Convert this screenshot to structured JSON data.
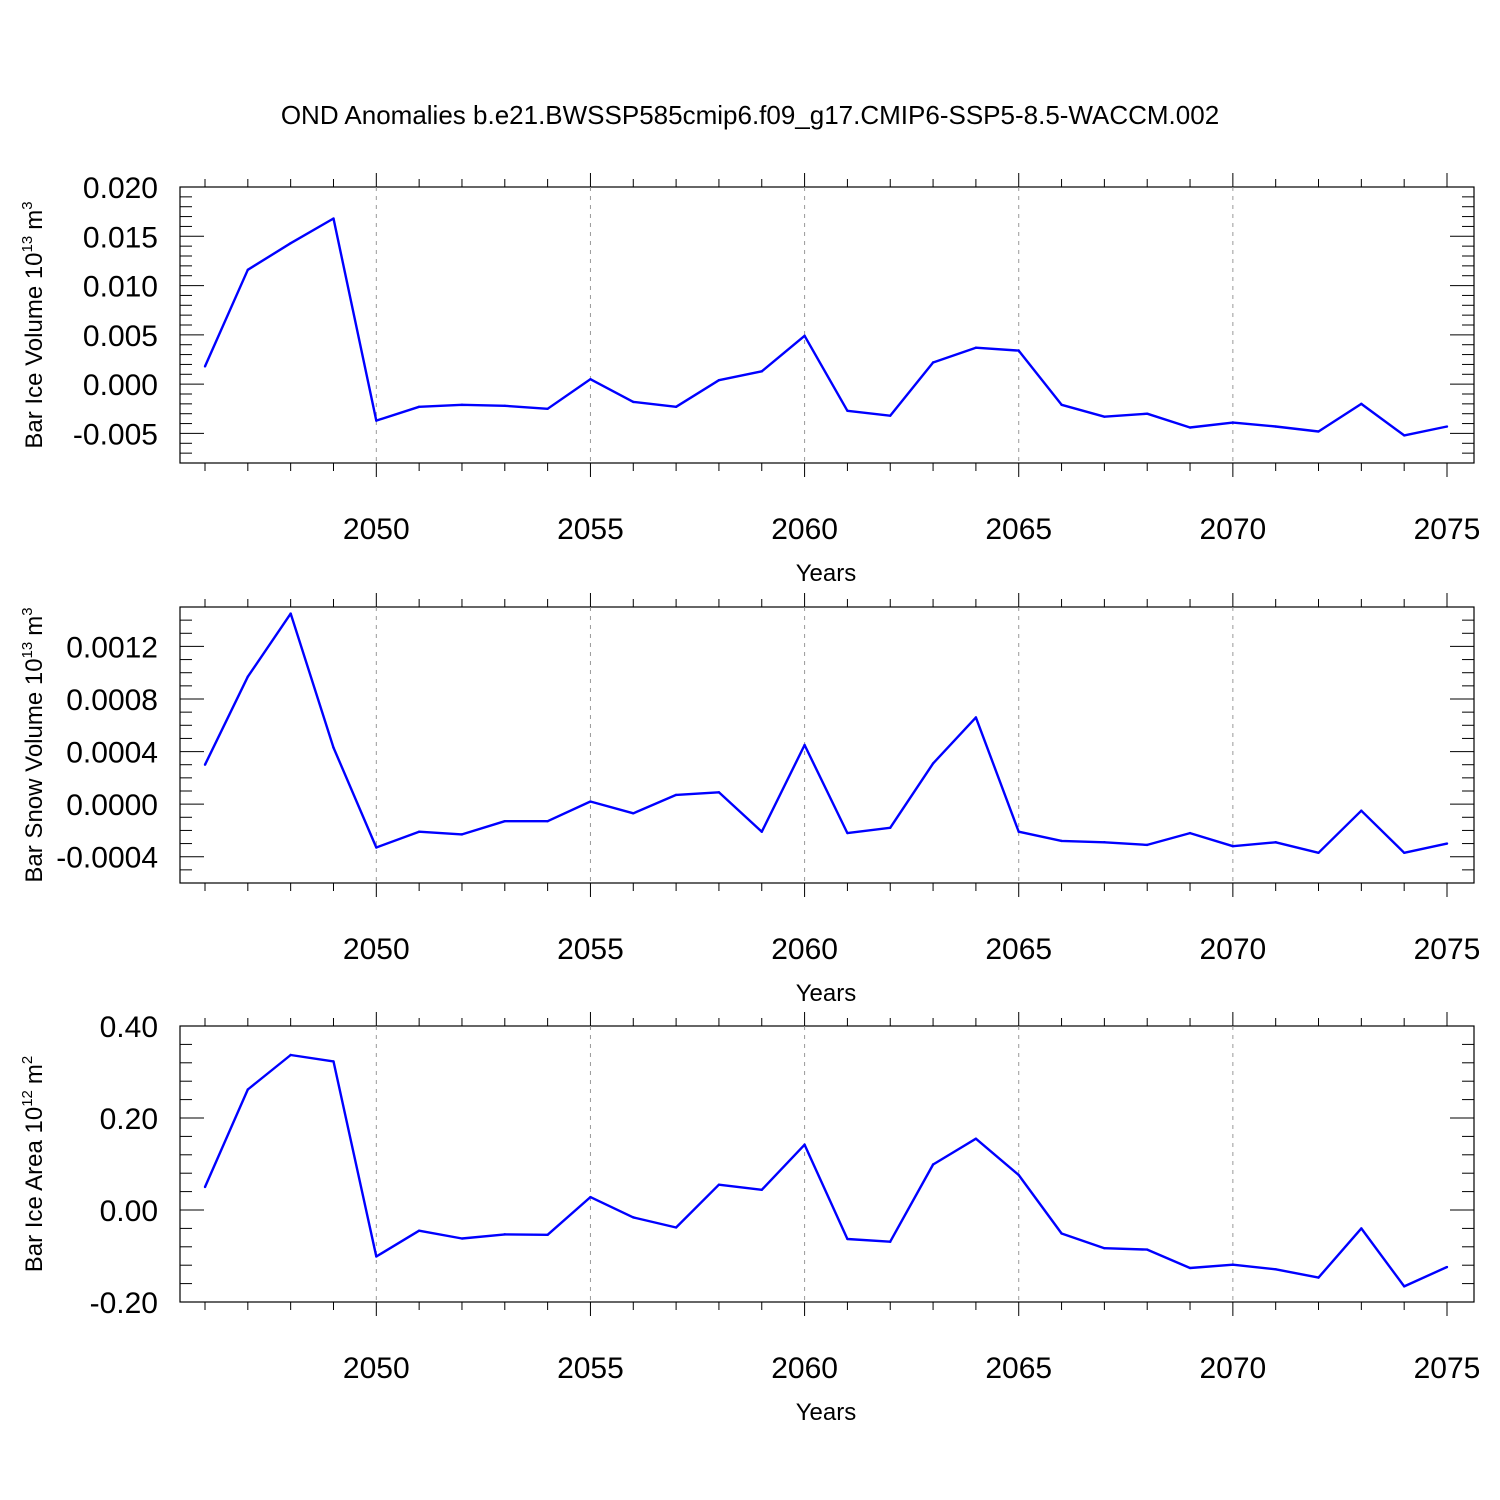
{
  "title": "OND Anomalies b.e21.BWSSP585cmip6.f09_g17.CMIP6-SSP5-8.5-WACCM.002",
  "colors": {
    "line": "#0000ff",
    "axis": "#000000",
    "grid": "#999999"
  },
  "chart_data": [
    {
      "type": "line",
      "name": "ice-volume",
      "ylabel": {
        "text": "Bar Ice Volume 10",
        "sup": "13",
        "unit": "m",
        "unit_sup": "3"
      },
      "xlabel": "Years",
      "xlim": [
        2046,
        2075
      ],
      "ylim": [
        -0.008,
        0.02
      ],
      "yticks": [
        -0.005,
        0.0,
        0.005,
        0.01,
        0.015,
        0.02
      ],
      "ytick_labels": [
        "-0.005",
        "0.000",
        "0.005",
        "0.010",
        "0.015",
        "0.020"
      ],
      "yminor_step": 0.001,
      "xticks": [
        2050,
        2055,
        2060,
        2065,
        2070,
        2075
      ],
      "xtick_labels": [
        "2050",
        "2055",
        "2060",
        "2065",
        "2070",
        "2075"
      ],
      "grid": "vertical dashed at major x ticks",
      "x": [
        2046,
        2047,
        2048,
        2049,
        2050,
        2051,
        2052,
        2053,
        2054,
        2055,
        2056,
        2057,
        2058,
        2059,
        2060,
        2061,
        2062,
        2063,
        2064,
        2065,
        2066,
        2067,
        2068,
        2069,
        2070,
        2071,
        2072,
        2073,
        2074,
        2075
      ],
      "values": [
        0.0018,
        0.0116,
        0.0143,
        0.0168,
        -0.0037,
        -0.0023,
        -0.0021,
        -0.0022,
        -0.0025,
        0.0005,
        -0.0018,
        -0.0023,
        0.0004,
        0.0013,
        0.0049,
        -0.0027,
        -0.0032,
        0.0022,
        0.0037,
        0.0034,
        -0.0021,
        -0.0033,
        -0.003,
        -0.0044,
        -0.0039,
        -0.0043,
        -0.0048,
        -0.002,
        -0.0052,
        -0.0043
      ]
    },
    {
      "type": "line",
      "name": "snow-volume",
      "ylabel": {
        "text": "Bar Snow Volume 10",
        "sup": "13",
        "unit": "m",
        "unit_sup": "3"
      },
      "xlabel": "Years",
      "xlim": [
        2046,
        2075
      ],
      "ylim": [
        -0.0006,
        0.0015
      ],
      "yticks": [
        -0.0004,
        0.0,
        0.0004,
        0.0008,
        0.0012
      ],
      "ytick_labels": [
        "-0.0004",
        "0.0000",
        "0.0004",
        "0.0008",
        "0.0012"
      ],
      "yminor_step": 0.0001,
      "xticks": [
        2050,
        2055,
        2060,
        2065,
        2070,
        2075
      ],
      "xtick_labels": [
        "2050",
        "2055",
        "2060",
        "2065",
        "2070",
        "2075"
      ],
      "grid": "vertical dashed at major x ticks",
      "x": [
        2046,
        2047,
        2048,
        2049,
        2050,
        2051,
        2052,
        2053,
        2054,
        2055,
        2056,
        2057,
        2058,
        2059,
        2060,
        2061,
        2062,
        2063,
        2064,
        2065,
        2066,
        2067,
        2068,
        2069,
        2070,
        2071,
        2072,
        2073,
        2074,
        2075
      ],
      "values": [
        0.0003,
        0.00097,
        0.00145,
        0.00043,
        -0.00033,
        -0.00021,
        -0.00023,
        -0.00013,
        -0.00013,
        2e-05,
        -7e-05,
        7e-05,
        9e-05,
        -0.00021,
        0.00045,
        -0.00022,
        -0.00018,
        0.00031,
        0.00066,
        -0.00021,
        -0.00028,
        -0.00029,
        -0.00031,
        -0.00022,
        -0.00032,
        -0.00029,
        -0.00037,
        -5e-05,
        -0.00037,
        -0.0003
      ]
    },
    {
      "type": "line",
      "name": "ice-area",
      "ylabel": {
        "text": "Bar Ice Area 10",
        "sup": "12",
        "unit": "m",
        "unit_sup": "2"
      },
      "xlabel": "Years",
      "xlim": [
        2046,
        2075
      ],
      "ylim": [
        -0.2,
        0.4
      ],
      "yticks": [
        -0.2,
        0.0,
        0.2,
        0.4
      ],
      "ytick_labels": [
        "-0.20",
        "0.00",
        "0.20",
        "0.40"
      ],
      "yminor_step": 0.04,
      "xticks": [
        2050,
        2055,
        2060,
        2065,
        2070,
        2075
      ],
      "xtick_labels": [
        "2050",
        "2055",
        "2060",
        "2065",
        "2070",
        "2075"
      ],
      "grid": "vertical dashed at major x ticks",
      "x": [
        2046,
        2047,
        2048,
        2049,
        2050,
        2051,
        2052,
        2053,
        2054,
        2055,
        2056,
        2057,
        2058,
        2059,
        2060,
        2061,
        2062,
        2063,
        2064,
        2065,
        2066,
        2067,
        2068,
        2069,
        2070,
        2071,
        2072,
        2073,
        2074,
        2075
      ],
      "values": [
        0.05,
        0.262,
        0.337,
        0.323,
        -0.101,
        -0.045,
        -0.062,
        -0.053,
        -0.054,
        0.028,
        -0.016,
        -0.038,
        0.055,
        0.044,
        0.142,
        -0.063,
        -0.069,
        0.099,
        0.155,
        0.076,
        -0.051,
        -0.083,
        -0.086,
        -0.126,
        -0.119,
        -0.129,
        -0.147,
        -0.04,
        -0.166,
        -0.124
      ]
    }
  ]
}
